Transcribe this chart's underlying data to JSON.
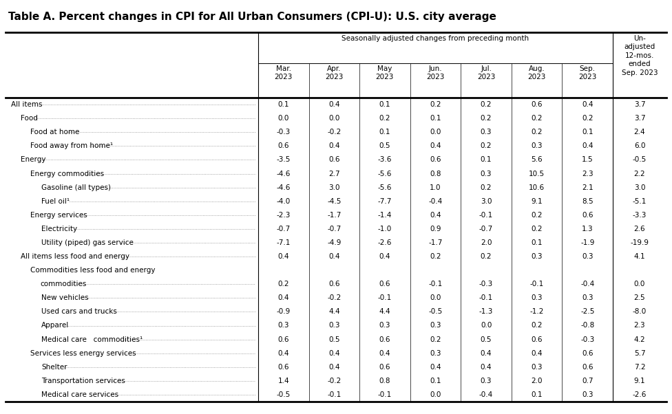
{
  "title": "Table A. Percent changes in CPI for All Urban Consumers (CPI-U): U.S. city average",
  "header_group": "Seasonally adjusted changes from preceding month",
  "last_col_header": "Un-\nadjusted\n12-mos.\nended\nSep. 2023",
  "col_headers": [
    "Mar.\n2023",
    "Apr.\n2023",
    "May\n2023",
    "Jun.\n2023",
    "Jul.\n2023",
    "Aug.\n2023",
    "Sep.\n2023"
  ],
  "rows": [
    {
      "label": "All items",
      "dots": true,
      "indent": 0,
      "values": [
        "0.1",
        "0.4",
        "0.1",
        "0.2",
        "0.2",
        "0.6",
        "0.4",
        "3.7"
      ]
    },
    {
      "label": "Food",
      "dots": true,
      "indent": 1,
      "values": [
        "0.0",
        "0.0",
        "0.2",
        "0.1",
        "0.2",
        "0.2",
        "0.2",
        "3.7"
      ]
    },
    {
      "label": "Food at home",
      "dots": true,
      "indent": 2,
      "values": [
        "-0.3",
        "-0.2",
        "0.1",
        "0.0",
        "0.3",
        "0.2",
        "0.1",
        "2.4"
      ]
    },
    {
      "label": "Food away from home¹",
      "dots": true,
      "indent": 2,
      "values": [
        "0.6",
        "0.4",
        "0.5",
        "0.4",
        "0.2",
        "0.3",
        "0.4",
        "6.0"
      ]
    },
    {
      "label": "Energy",
      "dots": true,
      "indent": 1,
      "values": [
        "-3.5",
        "0.6",
        "-3.6",
        "0.6",
        "0.1",
        "5.6",
        "1.5",
        "-0.5"
      ]
    },
    {
      "label": "Energy commodities",
      "dots": true,
      "indent": 2,
      "values": [
        "-4.6",
        "2.7",
        "-5.6",
        "0.8",
        "0.3",
        "10.5",
        "2.3",
        "2.2"
      ]
    },
    {
      "label": "Gasoline (all types)",
      "dots": true,
      "indent": 3,
      "values": [
        "-4.6",
        "3.0",
        "-5.6",
        "1.0",
        "0.2",
        "10.6",
        "2.1",
        "3.0"
      ]
    },
    {
      "label": "Fuel oil¹",
      "dots": true,
      "indent": 3,
      "values": [
        "-4.0",
        "-4.5",
        "-7.7",
        "-0.4",
        "3.0",
        "9.1",
        "8.5",
        "-5.1"
      ]
    },
    {
      "label": "Energy services",
      "dots": true,
      "indent": 2,
      "values": [
        "-2.3",
        "-1.7",
        "-1.4",
        "0.4",
        "-0.1",
        "0.2",
        "0.6",
        "-3.3"
      ]
    },
    {
      "label": "Electricity",
      "dots": true,
      "indent": 3,
      "values": [
        "-0.7",
        "-0.7",
        "-1.0",
        "0.9",
        "-0.7",
        "0.2",
        "1.3",
        "2.6"
      ]
    },
    {
      "label": "Utility (piped) gas service",
      "dots": true,
      "indent": 3,
      "values": [
        "-7.1",
        "-4.9",
        "-2.6",
        "-1.7",
        "2.0",
        "0.1",
        "-1.9",
        "-19.9"
      ]
    },
    {
      "label": "All items less food and energy",
      "dots": true,
      "indent": 1,
      "values": [
        "0.4",
        "0.4",
        "0.4",
        "0.2",
        "0.2",
        "0.3",
        "0.3",
        "4.1"
      ]
    },
    {
      "label": "Commodities less food and energy",
      "dots": false,
      "indent": 2,
      "values": [
        "",
        "",
        "",
        "",
        "",
        "",
        "",
        ""
      ],
      "line2": "   commodities",
      "line2_dots": true,
      "line2_values": [
        "0.2",
        "0.6",
        "0.6",
        "-0.1",
        "-0.3",
        "-0.1",
        "-0.4",
        "0.0"
      ]
    },
    {
      "label": "New vehicles",
      "dots": true,
      "indent": 3,
      "values": [
        "0.4",
        "-0.2",
        "-0.1",
        "0.0",
        "-0.1",
        "0.3",
        "0.3",
        "2.5"
      ]
    },
    {
      "label": "Used cars and trucks",
      "dots": true,
      "indent": 3,
      "values": [
        "-0.9",
        "4.4",
        "4.4",
        "-0.5",
        "-1.3",
        "-1.2",
        "-2.5",
        "-8.0"
      ]
    },
    {
      "label": "Apparel",
      "dots": true,
      "indent": 3,
      "values": [
        "0.3",
        "0.3",
        "0.3",
        "0.3",
        "0.0",
        "0.2",
        "-0.8",
        "2.3"
      ]
    },
    {
      "label": "Medical care   commodities¹",
      "dots": true,
      "indent": 3,
      "values": [
        "0.6",
        "0.5",
        "0.6",
        "0.2",
        "0.5",
        "0.6",
        "-0.3",
        "4.2"
      ]
    },
    {
      "label": "Services less energy services",
      "dots": true,
      "indent": 2,
      "values": [
        "0.4",
        "0.4",
        "0.4",
        "0.3",
        "0.4",
        "0.4",
        "0.6",
        "5.7"
      ]
    },
    {
      "label": "Shelter",
      "dots": true,
      "indent": 3,
      "values": [
        "0.6",
        "0.4",
        "0.6",
        "0.4",
        "0.4",
        "0.3",
        "0.6",
        "7.2"
      ]
    },
    {
      "label": "Transportation services",
      "dots": true,
      "indent": 3,
      "values": [
        "1.4",
        "-0.2",
        "0.8",
        "0.1",
        "0.3",
        "2.0",
        "0.7",
        "9.1"
      ]
    },
    {
      "label": "Medical care services",
      "dots": true,
      "indent": 3,
      "values": [
        "-0.5",
        "-0.1",
        "-0.1",
        "0.0",
        "-0.4",
        "0.1",
        "0.3",
        "-2.6"
      ]
    }
  ],
  "font_size_title": 11,
  "font_size_data": 7.5,
  "font_size_header": 7.5,
  "bg_color": "white",
  "line_color": "black",
  "title_color": "black"
}
